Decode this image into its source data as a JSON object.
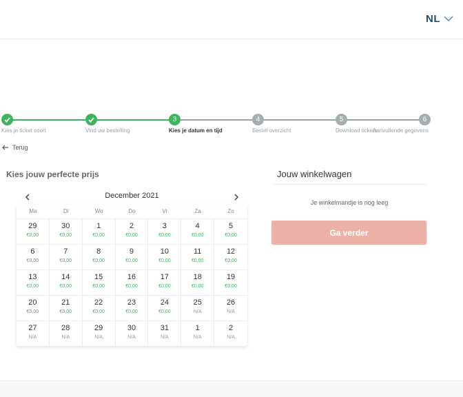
{
  "header": {
    "language": "NL"
  },
  "stepper": {
    "steps": [
      {
        "number": "",
        "label": "Kies je ticket soort",
        "state": "done"
      },
      {
        "number": "",
        "label": "Vind uw bestelling",
        "state": "done"
      },
      {
        "number": "3",
        "label": "Kies je datum en tijd",
        "state": "current"
      },
      {
        "number": "4",
        "label": "Bestel overzicht",
        "state": "todo"
      },
      {
        "number": "5",
        "label": "Download tickets",
        "state": "todo"
      },
      {
        "number": "6",
        "label": "Aanvullende gegevens",
        "state": "todo"
      }
    ]
  },
  "back_label": "Terug",
  "section_title": "Kies jouw perfecte prijs",
  "calendar": {
    "month_label": "December 2021",
    "weekdays": [
      "Ma",
      "Di",
      "Wo",
      "Do",
      "Vr",
      "Za",
      "Zo"
    ],
    "days": [
      {
        "day": "29",
        "price": "€0,00",
        "available": true
      },
      {
        "day": "30",
        "price": "€0,00",
        "available": true
      },
      {
        "day": "1",
        "price": "€0,00",
        "available": true
      },
      {
        "day": "2",
        "price": "€0,00",
        "available": true
      },
      {
        "day": "3",
        "price": "€0,00",
        "available": true
      },
      {
        "day": "4",
        "price": "€0,00",
        "available": true
      },
      {
        "day": "5",
        "price": "€0,00",
        "available": true
      },
      {
        "day": "6",
        "price": "€0,00",
        "available": true
      },
      {
        "day": "7",
        "price": "€0,00",
        "available": true
      },
      {
        "day": "8",
        "price": "€0,00",
        "available": true
      },
      {
        "day": "9",
        "price": "€0,00",
        "available": true
      },
      {
        "day": "10",
        "price": "€0,00",
        "available": true
      },
      {
        "day": "11",
        "price": "€0,00",
        "available": true
      },
      {
        "day": "12",
        "price": "€0,00",
        "available": true
      },
      {
        "day": "13",
        "price": "€0,00",
        "available": true
      },
      {
        "day": "14",
        "price": "€0,00",
        "available": true
      },
      {
        "day": "15",
        "price": "€0,00",
        "available": true
      },
      {
        "day": "16",
        "price": "€0,00",
        "available": true
      },
      {
        "day": "17",
        "price": "€0,00",
        "available": true
      },
      {
        "day": "18",
        "price": "€0,00",
        "available": true
      },
      {
        "day": "19",
        "price": "€0,00",
        "available": true
      },
      {
        "day": "20",
        "price": "€0,00",
        "available": true
      },
      {
        "day": "21",
        "price": "€0,00",
        "available": true
      },
      {
        "day": "22",
        "price": "€0,00",
        "available": true
      },
      {
        "day": "23",
        "price": "€0,00",
        "available": true
      },
      {
        "day": "24",
        "price": "€0,00",
        "available": true
      },
      {
        "day": "25",
        "price": "N/A",
        "available": false
      },
      {
        "day": "26",
        "price": "N/A",
        "available": false
      },
      {
        "day": "27",
        "price": "N/A",
        "available": false
      },
      {
        "day": "28",
        "price": "N/A",
        "available": false
      },
      {
        "day": "29",
        "price": "N/A",
        "available": false
      },
      {
        "day": "30",
        "price": "N/A",
        "available": false
      },
      {
        "day": "31",
        "price": "N/A",
        "available": false
      },
      {
        "day": "1",
        "price": "N/A",
        "available": false
      },
      {
        "day": "2",
        "price": "N/A",
        "available": false
      }
    ]
  },
  "cart": {
    "title": "Jouw winkelwagen",
    "empty_message": "Je winkelmandje is nog leeg",
    "cta_label": "Ga verder"
  },
  "colors": {
    "accent_green": "#3cb55e",
    "inactive_grey": "#a5adb1",
    "cta_pink": "#edb2a7",
    "language_blue": "#1f4d72"
  }
}
